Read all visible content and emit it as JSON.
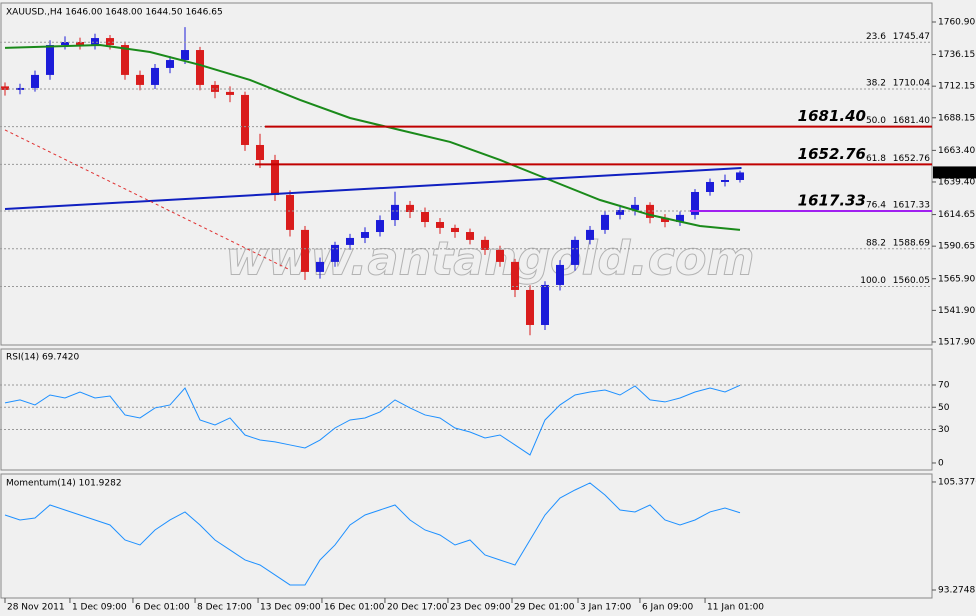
{
  "chart_data": [
    {
      "type": "candlestick",
      "title": "XAUUSD.,H4  1646.00 1648.00 1644.50 1646.65",
      "watermark": "www.antangold.com",
      "up_color": "#1c1cd9",
      "down_color": "#d91c1c",
      "xlim": [
        -0.333,
        61.8
      ],
      "ylim": [
        1515.6,
        1773.8
      ],
      "yticks": [
        {
          "value": 1760.9,
          "label": "1760.90"
        },
        1736.15,
        1712.15,
        1688.15,
        {
          "value": 1663.4,
          "label": "1663.40"
        },
        {
          "value": 1639.4,
          "label": "1639.40"
        },
        1614.65,
        1590.65,
        {
          "value": 1565.9,
          "label": "1565.90"
        },
        {
          "value": 1541.9,
          "label": "1541.90"
        },
        {
          "value": 1517.9,
          "label": "1517.90"
        }
      ],
      "current_price": 1646.65,
      "x": [
        0,
        1,
        2,
        3,
        4,
        5,
        6,
        7,
        8,
        9,
        10,
        11,
        12,
        13,
        14,
        15,
        16,
        17,
        18,
        19,
        20,
        21,
        22,
        23,
        24,
        25,
        26,
        27,
        28,
        29,
        30,
        31,
        32,
        33,
        34,
        35,
        36,
        37,
        38,
        39,
        40,
        41,
        42,
        43,
        44,
        45,
        46,
        47,
        48,
        49
      ],
      "open": [
        1712,
        1709.3,
        1710.8,
        1720.7,
        1743.4,
        1745.7,
        1743.4,
        1748.7,
        1743.4,
        1720.7,
        1713.1,
        1726,
        1732,
        1739.6,
        1713.1,
        1707.8,
        1705.5,
        1667.5,
        1656.1,
        1629.5,
        1603,
        1571.1,
        1578.7,
        1591.6,
        1596.9,
        1601.4,
        1610.5,
        1622,
        1616.6,
        1609,
        1604.5,
        1601.4,
        1595.4,
        1587.8,
        1578.7,
        1557.4,
        1530.8,
        1561.2,
        1576.4,
        1595.4,
        1603,
        1614.4,
        1618.1,
        1622,
        1612.1,
        1609,
        1614.4,
        1631.8,
        1639.4,
        1640.9
      ],
      "high": [
        1715,
        1714,
        1724,
        1747,
        1750,
        1749,
        1752,
        1751,
        1746,
        1724,
        1729,
        1735,
        1757,
        1742,
        1716,
        1712,
        1708,
        1676,
        1660,
        1633,
        1606,
        1582,
        1594,
        1600,
        1605,
        1614,
        1632,
        1625,
        1620,
        1612,
        1607,
        1604,
        1598,
        1591,
        1581,
        1561,
        1564,
        1580,
        1598,
        1606,
        1617,
        1622,
        1628,
        1624,
        1615,
        1617,
        1634,
        1642,
        1645,
        1648
      ],
      "low": [
        1705,
        1706,
        1708,
        1717,
        1740,
        1740,
        1740,
        1740,
        1717,
        1709,
        1710,
        1722,
        1729,
        1709,
        1703,
        1700,
        1663,
        1650,
        1625,
        1598,
        1565,
        1566,
        1575,
        1588,
        1593,
        1598,
        1606,
        1612,
        1605,
        1600,
        1597,
        1592,
        1584,
        1575,
        1552,
        1523,
        1527,
        1557,
        1572,
        1592,
        1600,
        1611,
        1614,
        1608,
        1605,
        1606,
        1611,
        1629,
        1636,
        1639
      ],
      "close": [
        1709.3,
        1710.8,
        1720.7,
        1743.4,
        1745.7,
        1743.4,
        1748.7,
        1743.4,
        1720.7,
        1713.1,
        1726,
        1732,
        1739.6,
        1713.1,
        1707.8,
        1705.5,
        1667.5,
        1656.1,
        1629.5,
        1603,
        1571.1,
        1578.7,
        1591.6,
        1596.9,
        1601.4,
        1610.5,
        1622,
        1616.6,
        1609,
        1604.5,
        1601.4,
        1595.4,
        1587.8,
        1578.7,
        1557.4,
        1530.8,
        1561.2,
        1576.4,
        1595.4,
        1603,
        1614.4,
        1618.1,
        1622,
        1612.1,
        1609,
        1614.4,
        1631.8,
        1639.4,
        1640.9,
        1646.65
      ],
      "overlays": [
        {
          "color": "#1a8a1a",
          "dash": false,
          "x": [
            0,
            6.33,
            9.67,
            13,
            16.33,
            19.67,
            23,
            26.33,
            29.67,
            33,
            36.33,
            39.67,
            43,
            46.33,
            49
          ],
          "values": [
            1741.2,
            1743.4,
            1738.1,
            1728.3,
            1716.9,
            1701.7,
            1688,
            1678.9,
            1669.8,
            1656.1,
            1640.9,
            1625.7,
            1614.4,
            1606,
            1603
          ]
        },
        {
          "color": "#1020c0",
          "dash": false,
          "x": [
            0,
            49.1
          ],
          "values": [
            1618.9,
            1650
          ]
        },
        {
          "color": "#e03030",
          "dash": true,
          "x": [
            0,
            19
          ],
          "values": [
            1678.9,
            1572.6
          ]
        }
      ],
      "fib_levels": [
        {
          "ratio": "23.6",
          "value": 1745.47
        },
        {
          "ratio": "38.2",
          "value": 1710.04
        },
        {
          "ratio": "50.0",
          "value": 1681.4,
          "label": "1681.40"
        },
        {
          "ratio": "61.8",
          "value": 1652.76
        },
        {
          "ratio": "76.4",
          "value": 1617.33
        },
        {
          "ratio": "88.2",
          "value": 1588.69
        },
        {
          "ratio": "100.0",
          "value": 1560.05
        }
      ],
      "key_levels": [
        {
          "value": 1681.4,
          "label": "1681.40",
          "x_start": 17.33,
          "color": "#c00000"
        },
        {
          "value": 1652.76,
          "x_start": 16.67,
          "color": "#c00000"
        },
        {
          "value": 1617.33,
          "x_start": 45.67,
          "color": "#a020f0"
        }
      ]
    },
    {
      "type": "line",
      "title": "RSI(14) 69.7420",
      "color": "#1e90ff",
      "xlim": [
        -0.333,
        61.8
      ],
      "ylim": [
        -6.3,
        101.4
      ],
      "yticks": [
        70,
        50,
        30,
        0
      ],
      "grid_levels": [
        70,
        50,
        30
      ],
      "x": [
        0,
        1,
        2,
        3,
        4,
        5,
        6,
        7,
        8,
        9,
        10,
        11,
        12,
        13,
        14,
        15,
        16,
        17,
        18,
        19,
        20,
        21,
        22,
        23,
        24,
        25,
        26,
        27,
        28,
        29,
        30,
        31,
        32,
        33,
        34,
        35,
        36,
        37,
        38,
        39,
        40,
        41,
        42,
        43,
        44,
        45,
        46,
        47,
        48,
        49
      ],
      "values": [
        53.9,
        56.6,
        52.1,
        61,
        58.3,
        63.7,
        58.3,
        60.1,
        43.1,
        40.4,
        49.4,
        52.1,
        67.3,
        38.6,
        34.1,
        40.4,
        25.1,
        20.6,
        18.9,
        16.2,
        13.5,
        20.6,
        31.4,
        38.6,
        40.4,
        45.8,
        56.6,
        49.4,
        43.1,
        40.4,
        31.4,
        27.8,
        22.4,
        25.1,
        16.2,
        7.2,
        38.6,
        52.1,
        61,
        63.7,
        65.5,
        61,
        69.1,
        56.6,
        54.8,
        58.3,
        63.7,
        67.3,
        63.7,
        69.74
      ]
    },
    {
      "type": "line",
      "title": "Momentum(14) 101.9282",
      "color": "#1e90ff",
      "xlim": [
        -0.333,
        61.8
      ],
      "ylim": [
        92.38,
        106.16
      ],
      "yticks": [
        105.3776,
        93.2748
      ],
      "xticks": [
        {
          "value": 0,
          "label": "28 Nov 2011"
        },
        {
          "value": 4.33,
          "label": "1 Dec 09:00"
        },
        {
          "value": 8.53,
          "label": "6 Dec 01:00"
        },
        {
          "value": 12.67,
          "label": "8 Dec 17:00"
        },
        {
          "value": 16.87,
          "label": "13 Dec 09:00"
        },
        {
          "value": 21.13,
          "label": "16 Dec 01:00"
        },
        {
          "value": 25.33,
          "label": "20 Dec 17:00"
        },
        {
          "value": 29.53,
          "label": "23 Dec 09:00"
        },
        {
          "value": 33.8,
          "label": "29 Dec 01:00"
        },
        {
          "value": 38.2,
          "label": "3 Jan 17:00"
        },
        {
          "value": 42.33,
          "label": "6 Jan 09:00"
        },
        {
          "value": 46.67,
          "label": "11 Jan 01:00"
        }
      ],
      "x": [
        0,
        1,
        2,
        3,
        4,
        5,
        6,
        7,
        8,
        9,
        10,
        11,
        12,
        13,
        14,
        15,
        16,
        17,
        18,
        19,
        20,
        21,
        22,
        23,
        24,
        25,
        26,
        27,
        28,
        29,
        30,
        31,
        32,
        33,
        34,
        35,
        36,
        37,
        38,
        39,
        40,
        41,
        42,
        43,
        44,
        45,
        46,
        47,
        48,
        49
      ],
      "values": [
        101.68,
        101.12,
        101.34,
        102.8,
        102.24,
        101.68,
        101.12,
        100.56,
        98.88,
        98.32,
        100,
        101.12,
        102.02,
        100.56,
        98.88,
        97.76,
        96.64,
        96.08,
        94.96,
        93.84,
        93.84,
        96.64,
        98.32,
        100.56,
        101.68,
        102.24,
        102.8,
        101.12,
        100,
        99.44,
        98.32,
        98.88,
        97.2,
        96.64,
        96.08,
        98.88,
        101.68,
        103.58,
        104.48,
        105.27,
        103.92,
        102.24,
        102.02,
        102.8,
        101.12,
        100.56,
        101.12,
        102.02,
        102.46,
        101.93
      ]
    }
  ]
}
